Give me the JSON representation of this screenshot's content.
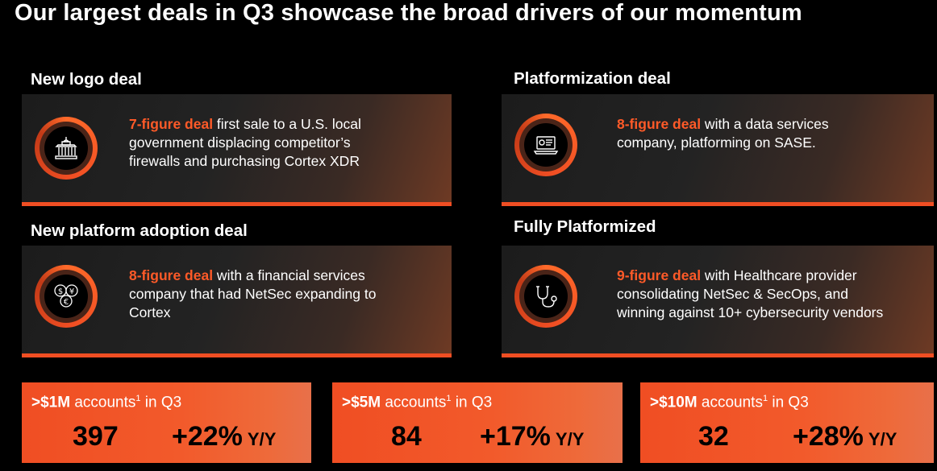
{
  "title": "Our largest deals in Q3 showcase the broad drivers of our momentum",
  "deals": [
    {
      "label": "New logo deal",
      "highlight": "7-figure deal",
      "text": " first sale to a U.S. local government displacing competitor’s firewalls and purchasing Cortex XDR",
      "icon": "government-building-icon"
    },
    {
      "label": "Platformization deal",
      "highlight": "8-figure deal",
      "text": " with a data services company, platforming on SASE.",
      "icon": "laptop-icon"
    },
    {
      "label": "New platform adoption deal",
      "highlight": "8-figure deal",
      "text": " with a financial services company that had NetSec expanding to Cortex",
      "icon": "currency-icon"
    },
    {
      "label": "Fully Platformized",
      "highlight": "9-figure deal",
      "text": " with Healthcare provider consolidating NetSec & SecOps, and winning against 10+ cybersecurity vendors",
      "icon": "stethoscope-icon"
    }
  ],
  "metrics": [
    {
      "threshold": ">$1M",
      "label": " accounts",
      "sup": "1",
      "suffix": " in Q3",
      "count": "397",
      "growth": "+22%",
      "yy": "Y/Y"
    },
    {
      "threshold": ">$5M",
      "label": " accounts",
      "sup": "1",
      "suffix": " in Q3",
      "count": "84",
      "growth": "+17%",
      "yy": "Y/Y"
    },
    {
      "threshold": ">$10M",
      "label": " accounts",
      "sup": "1",
      "suffix": " in Q3",
      "count": "32",
      "growth": "+28%",
      "yy": "Y/Y"
    }
  ],
  "colors": {
    "accent": "#f04e23",
    "highlight": "#ff5a28",
    "background": "#000000"
  }
}
